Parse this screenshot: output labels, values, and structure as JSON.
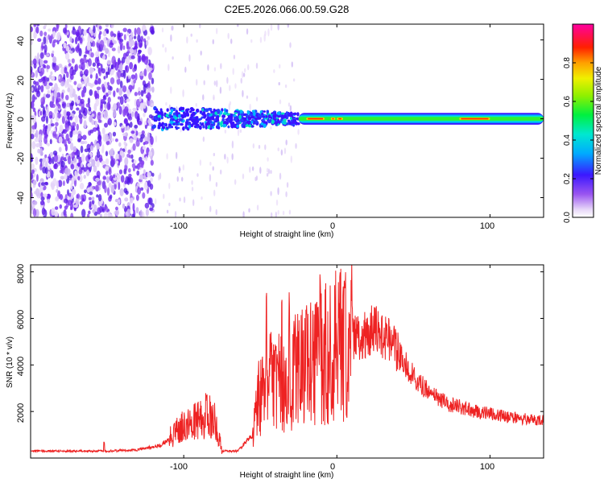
{
  "figure_title": "C2E5.2026.066.00.59.G28",
  "chart_data": [
    {
      "type": "heatmap",
      "title": "C2E5.2026.066.00.59.G28",
      "xlabel": "Height of straight line (km)",
      "ylabel": "Frequency (Hz)",
      "xlim": [
        -200,
        135
      ],
      "ylim": [
        -50,
        48
      ],
      "xticks": [
        -100,
        0,
        100
      ],
      "yticks": [
        -40,
        -20,
        0,
        20,
        40
      ],
      "xtick_labels": [
        "-100",
        "0",
        "100"
      ],
      "ytick_labels": [
        "-40",
        "-20",
        "0",
        "20",
        "40"
      ],
      "colorbar": {
        "label": "Normalized spectral amplitude",
        "range": [
          0,
          1
        ],
        "ticks": [
          "0.0",
          "0.2",
          "0.4",
          "0.6",
          "0.8"
        ],
        "tick_values": [
          0.0,
          0.2,
          0.4,
          0.6,
          0.8
        ]
      },
      "features": [
        {
          "name": "broadband noise",
          "x_range": [
            -200,
            -120
          ],
          "freq_range": [
            -50,
            48
          ],
          "amplitude": 0.1
        },
        {
          "name": "sparse noise",
          "x_range": [
            -120,
            -30
          ],
          "freq_range": [
            -50,
            48
          ],
          "amplitude": 0.02
        },
        {
          "name": "scattered signal cluster",
          "x_range": [
            -120,
            -25
          ],
          "freq_range": [
            -6,
            6
          ],
          "amplitude": 0.25
        },
        {
          "name": "carrier line",
          "x_range": [
            -25,
            135
          ],
          "freq_center": 0,
          "freq_halfwidth": 3,
          "peak_amplitude": 0.95
        }
      ]
    },
    {
      "type": "line",
      "xlabel": "Height of straight line (km)",
      "ylabel": "SNR (10 * v/v)",
      "xlim": [
        -200,
        135
      ],
      "ylim": [
        0,
        8300
      ],
      "xticks": [
        -100,
        0,
        100
      ],
      "yticks": [
        2000,
        4000,
        6000,
        8000
      ],
      "xtick_labels": [
        "-100",
        "0",
        "100"
      ],
      "ytick_labels": [
        "2000",
        "4000",
        "6000",
        "8000"
      ],
      "color": "#ee2222",
      "series": [
        {
          "name": "SNR envelope",
          "x": [
            -200,
            -170,
            -150,
            -130,
            -115,
            -105,
            -100,
            -95,
            -90,
            -85,
            -80,
            -75,
            -65,
            -55,
            -50,
            -45,
            -40,
            -35,
            -30,
            -25,
            -20,
            -15,
            -10,
            -5,
            0,
            5,
            10,
            15,
            20,
            25,
            30,
            35,
            40,
            50,
            60,
            70,
            80,
            90,
            100,
            110,
            120,
            135
          ],
          "values": [
            300,
            300,
            300,
            350,
            550,
            1100,
            1400,
            1500,
            1600,
            1900,
            1800,
            300,
            300,
            1000,
            3000,
            3500,
            3100,
            3200,
            3700,
            3900,
            4000,
            4000,
            4300,
            4600,
            4800,
            5000,
            5100,
            5200,
            5400,
            5600,
            5300,
            5000,
            4500,
            3500,
            2800,
            2400,
            2200,
            2000,
            1900,
            1800,
            1700,
            1600
          ]
        },
        {
          "name": "SNR spikes",
          "x": [
            -152,
            -105,
            -85,
            -46,
            -40,
            -36,
            -31,
            -28,
            -20,
            -11,
            5,
            10
          ],
          "values": [
            700,
            1700,
            2800,
            7300,
            4800,
            6900,
            7200,
            5900,
            6800,
            8200,
            7500,
            6900
          ]
        }
      ]
    }
  ]
}
